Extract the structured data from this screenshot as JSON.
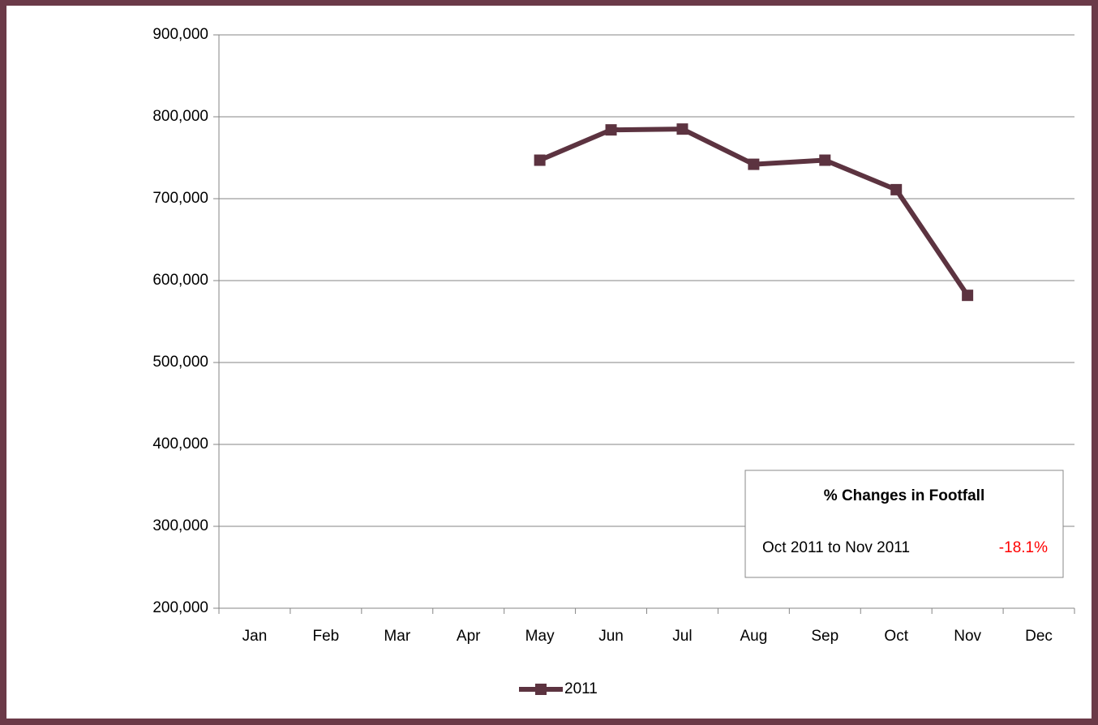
{
  "chart_data": {
    "type": "line",
    "categories": [
      "Jan",
      "Feb",
      "Mar",
      "Apr",
      "May",
      "Jun",
      "Jul",
      "Aug",
      "Sep",
      "Oct",
      "Nov",
      "Dec"
    ],
    "series": [
      {
        "name": "2011",
        "color": "#5c3340",
        "values": [
          null,
          null,
          null,
          null,
          747000,
          784000,
          785000,
          742000,
          747000,
          711000,
          582000,
          null
        ]
      }
    ],
    "ylim": [
      200000,
      900000
    ],
    "yticks": [
      {
        "value": 200000,
        "label": "200,000"
      },
      {
        "value": 300000,
        "label": "300,000"
      },
      {
        "value": 400000,
        "label": "400,000"
      },
      {
        "value": 500000,
        "label": "500,000"
      },
      {
        "value": 600000,
        "label": "600,000"
      },
      {
        "value": 700000,
        "label": "700,000"
      },
      {
        "value": 800000,
        "label": "800,000"
      },
      {
        "value": 900000,
        "label": "900,000"
      }
    ],
    "grid": true,
    "legend": "bottom",
    "annotation": {
      "title": "% Changes in Footfall",
      "label": "Oct 2011 to Nov 2011",
      "value": "-18.1%",
      "value_color": "#ff0000"
    }
  }
}
